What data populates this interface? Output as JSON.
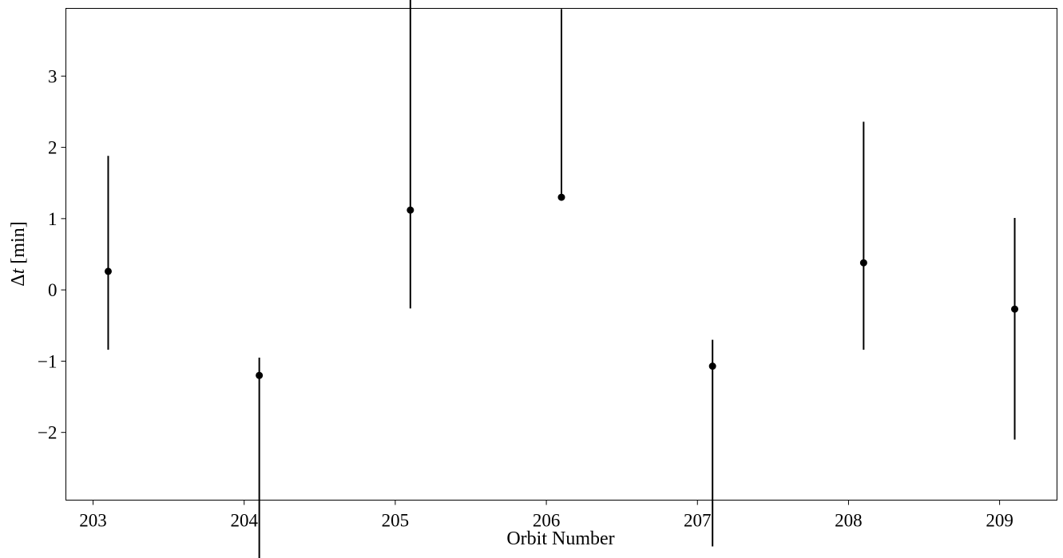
{
  "chart_data": {
    "type": "scatter",
    "subtype": "errorbar",
    "title": "",
    "xlabel": "Orbit Number",
    "ylabel": "Δt [min]",
    "ylabel_parts": {
      "prefix": "Δ",
      "italic": "t",
      "suffix": " [min]"
    },
    "xlim": [
      202.82,
      209.38
    ],
    "ylim": [
      -2.95,
      3.95
    ],
    "xticks": [
      203,
      204,
      205,
      206,
      207,
      208,
      209
    ],
    "yticks": [
      -2,
      -1,
      0,
      1,
      2,
      3
    ],
    "ytick_labels": [
      "−2",
      "−1",
      "0",
      "1",
      "2",
      "3"
    ],
    "grid": false,
    "legend": "none",
    "colors": {
      "marker": "#000000",
      "errorbar": "#000000",
      "axes": "#000000"
    },
    "points": [
      {
        "x": 203.1,
        "y": 0.26,
        "yerr_low": 1.1,
        "yerr_high": 1.62
      },
      {
        "x": 204.1,
        "y": -1.2,
        "yerr_low": 2.65,
        "yerr_high": 0.25
      },
      {
        "x": 205.1,
        "y": 1.12,
        "yerr_low": 1.38,
        "yerr_high": 3.65
      },
      {
        "x": 206.1,
        "y": 1.3,
        "yerr_low": 0.0,
        "yerr_high": 2.64
      },
      {
        "x": 207.1,
        "y": -1.07,
        "yerr_low": 2.53,
        "yerr_high": 0.37
      },
      {
        "x": 208.1,
        "y": 0.38,
        "yerr_low": 1.22,
        "yerr_high": 1.98
      },
      {
        "x": 209.1,
        "y": -0.27,
        "yerr_low": 1.83,
        "yerr_high": 1.28
      }
    ]
  }
}
